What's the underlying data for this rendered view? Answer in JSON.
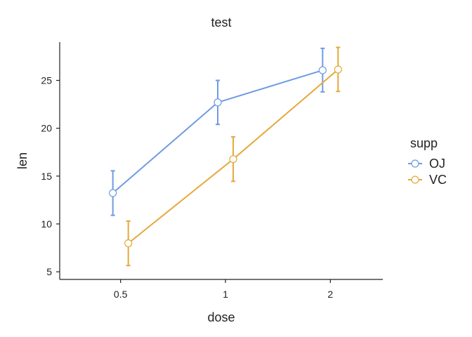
{
  "chart_data": {
    "type": "line",
    "title": "test",
    "xlabel": "dose",
    "ylabel": "len",
    "categories": [
      "0.5",
      "1",
      "2"
    ],
    "ylim": [
      4.2,
      29.0
    ],
    "yticks": [
      5,
      10,
      15,
      20,
      25
    ],
    "grid": false,
    "error_bars": true,
    "legend": {
      "title": "supp",
      "placement": "right"
    },
    "series": [
      {
        "name": "OJ",
        "color": "#6f9be3",
        "values": [
          13.23,
          22.7,
          26.06
        ],
        "err_low": [
          10.9,
          20.4,
          23.8
        ],
        "err_high": [
          15.55,
          25.0,
          28.35
        ]
      },
      {
        "name": "VC",
        "color": "#e6a83c",
        "values": [
          7.98,
          16.77,
          26.14
        ],
        "err_low": [
          5.65,
          14.45,
          23.85
        ],
        "err_high": [
          10.3,
          19.1,
          28.45
        ]
      }
    ]
  }
}
